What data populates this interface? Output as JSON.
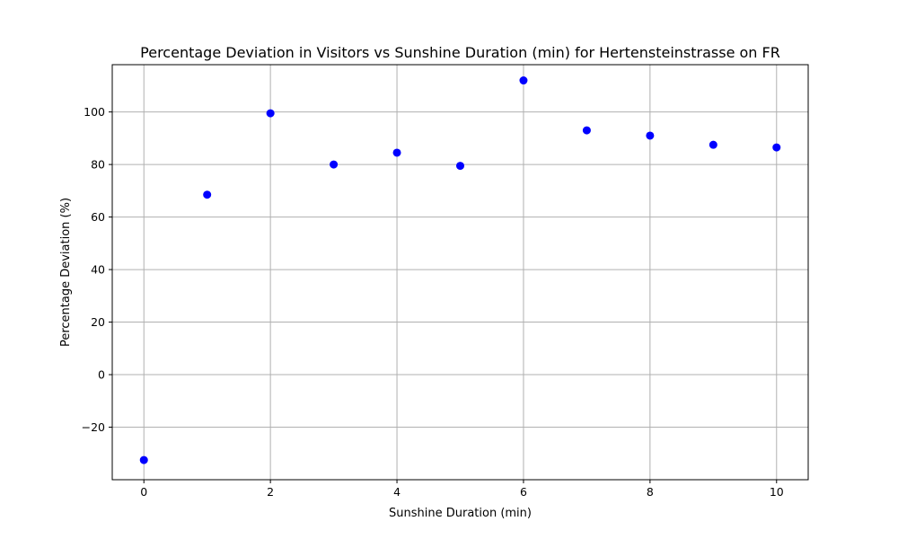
{
  "chart_data": {
    "type": "scatter",
    "title": "Percentage Deviation in Visitors vs Sunshine Duration (min) for Hertensteinstrasse on FR",
    "xlabel": "Sunshine Duration (min)",
    "ylabel": "Percentage Deviation (%)",
    "xlim": [
      -0.5,
      10.5
    ],
    "ylim": [
      -40,
      118
    ],
    "xticks": [
      0,
      2,
      4,
      6,
      8,
      10
    ],
    "yticks": [
      -20,
      0,
      20,
      40,
      60,
      80,
      100
    ],
    "xtick_labels": [
      "0",
      "2",
      "4",
      "6",
      "8",
      "10"
    ],
    "ytick_labels": [
      "−20",
      "0",
      "20",
      "40",
      "60",
      "80",
      "100"
    ],
    "grid": true,
    "marker_color": "#0000ff",
    "x": [
      0,
      1,
      2,
      3,
      4,
      5,
      6,
      7,
      8,
      9,
      10
    ],
    "y": [
      -32.5,
      68.5,
      99.5,
      80,
      84.5,
      79.5,
      112,
      93,
      91,
      87.5,
      86.5
    ]
  }
}
